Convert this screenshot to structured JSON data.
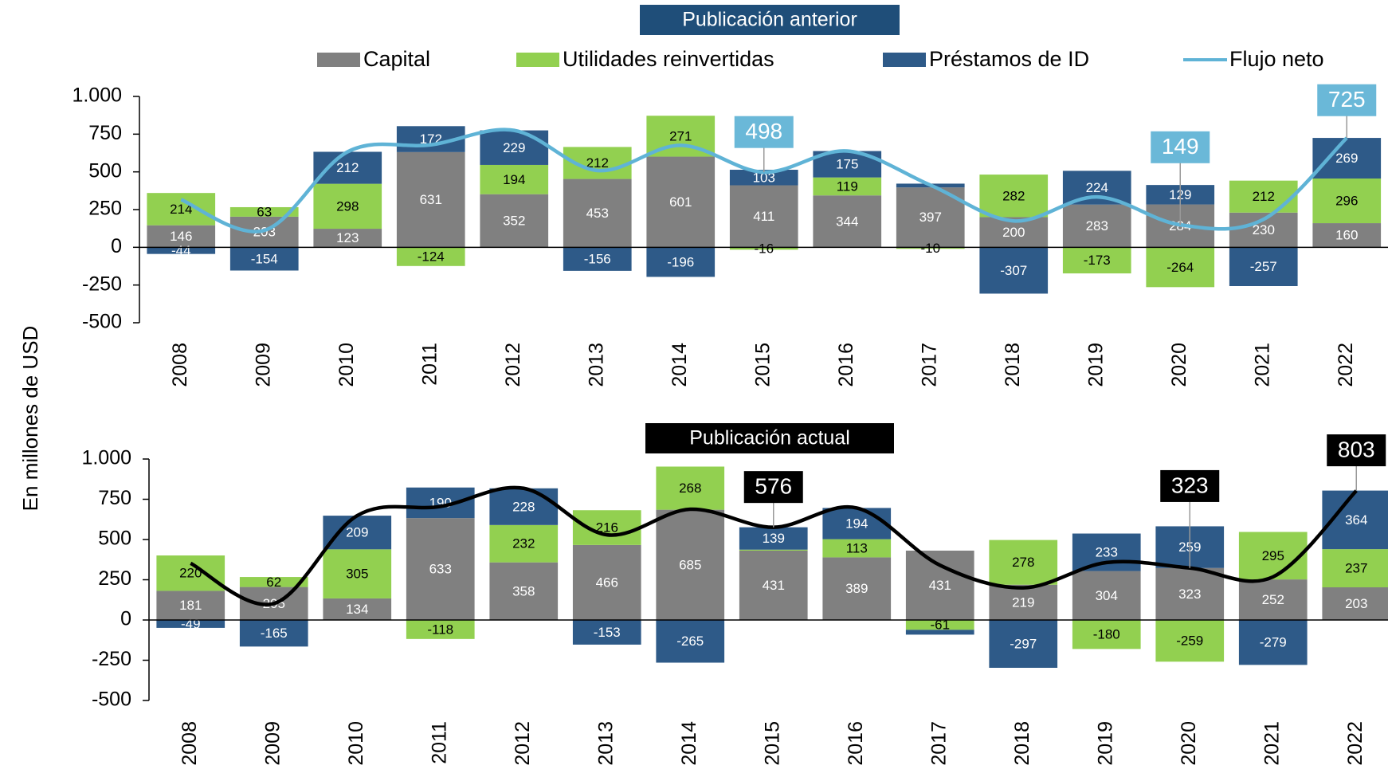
{
  "y_axis_label": "En millones de USD",
  "chart_data": [
    {
      "type": "bar",
      "stacked": true,
      "title": "Publicación anterior",
      "categories": [
        "2008",
        "2009",
        "2010",
        "2011",
        "2012",
        "2013",
        "2014",
        "2015",
        "2016",
        "2017",
        "2018",
        "2019",
        "2020",
        "2021",
        "2022"
      ],
      "ylim": [
        -500,
        1000
      ],
      "yticks": [
        {
          "value": 1000,
          "label": "1.000"
        },
        750,
        500,
        250,
        0,
        -250,
        -500
      ],
      "series": [
        {
          "name": "Capital",
          "color": "#808080",
          "values": [
            146,
            203,
            123,
            631,
            352,
            453,
            601,
            411,
            344,
            397,
            200,
            283,
            284,
            230,
            160
          ]
        },
        {
          "name": "Utilidades reinvertidas",
          "color": "#92d050",
          "values": [
            214,
            63,
            298,
            -124,
            194,
            212,
            271,
            -16,
            119,
            -10,
            282,
            -173,
            -264,
            212,
            296
          ]
        },
        {
          "name": "Préstamos de ID",
          "color": "#2e5a88",
          "values": [
            -44,
            -154,
            212,
            172,
            229,
            -156,
            -196,
            103,
            175,
            25,
            -307,
            224,
            129,
            -257,
            269
          ],
          "value_labels": [
            "-44",
            "-154",
            "212",
            "172",
            "229",
            "-156",
            "-196",
            "103",
            "175",
            null,
            "-307",
            "224",
            "129",
            "-257",
            "269"
          ]
        },
        {
          "name": "Flujo neto",
          "type": "line",
          "color": "#5fb3d6",
          "label_color": "#6ab8d8",
          "values": [
            316,
            112,
            633,
            679,
            775,
            509,
            676,
            498,
            638,
            412,
            175,
            334,
            149,
            185,
            725
          ],
          "value_labels": [
            null,
            null,
            null,
            null,
            null,
            null,
            null,
            "498",
            null,
            null,
            null,
            null,
            "149",
            null,
            "725"
          ]
        }
      ]
    },
    {
      "type": "bar",
      "stacked": true,
      "title": "Publicación actual",
      "categories": [
        "2008",
        "2009",
        "2010",
        "2011",
        "2012",
        "2013",
        "2014",
        "2015",
        "2016",
        "2017",
        "2018",
        "2019",
        "2020",
        "2021",
        "2022"
      ],
      "ylim": [
        -500,
        1000
      ],
      "yticks": [
        {
          "value": 1000,
          "label": "1.000"
        },
        750,
        500,
        250,
        0,
        -250,
        -500
      ],
      "series": [
        {
          "name": "Capital",
          "color": "#808080",
          "values": [
            181,
            205,
            134,
            633,
            358,
            466,
            685,
            431,
            389,
            431,
            219,
            304,
            323,
            252,
            203
          ]
        },
        {
          "name": "Utilidades reinvertidas",
          "color": "#92d050",
          "values": [
            220,
            62,
            305,
            -118,
            232,
            216,
            268,
            6,
            113,
            -61,
            278,
            -180,
            -259,
            295,
            237
          ],
          "value_labels": [
            "220",
            "62",
            "305",
            "-118",
            "232",
            "216",
            "268",
            null,
            "113",
            "-61",
            "278",
            "-180",
            "-259",
            "295",
            "237"
          ]
        },
        {
          "name": "Préstamos de ID",
          "color": "#2e5a88",
          "values": [
            -49,
            -165,
            209,
            190,
            228,
            -153,
            -265,
            139,
            194,
            -30,
            -297,
            233,
            259,
            -279,
            364
          ],
          "value_labels": [
            "-49",
            "-165",
            "209",
            "190",
            "228",
            "-153",
            "-265",
            "139",
            "194",
            null,
            "-297",
            "233",
            "259",
            "-279",
            "364"
          ]
        },
        {
          "name": "Flujo neto",
          "type": "line",
          "color": "#000000",
          "label_color": "#000000",
          "values": [
            352,
            102,
            648,
            705,
            818,
            529,
            688,
            576,
            696,
            340,
            200,
            357,
            323,
            268,
            803
          ],
          "value_labels": [
            null,
            null,
            null,
            null,
            null,
            null,
            null,
            "576",
            null,
            null,
            null,
            null,
            "323",
            null,
            "803"
          ]
        }
      ]
    }
  ]
}
